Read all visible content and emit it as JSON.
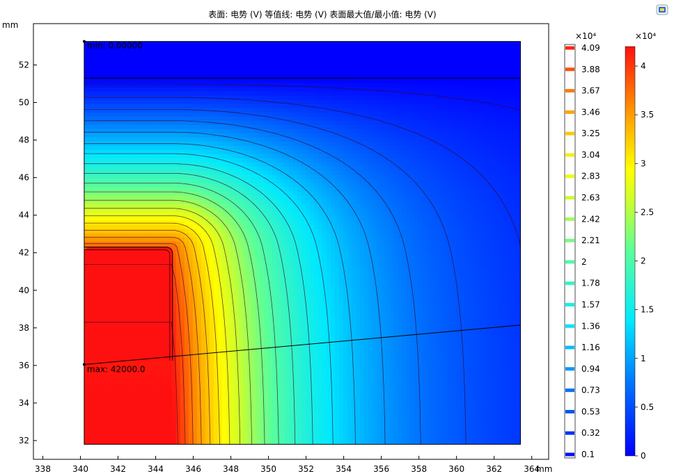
{
  "chart_data": {
    "type": "heatmap",
    "title": "表面: 电势 (V)  等值线: 电势 (V)  表面最大值/最小值: 电势 (V)",
    "xlabel": "mm",
    "ylabel": "mm",
    "xlim": [
      337.5,
      364.9
    ],
    "ylim": [
      31.0,
      54.2
    ],
    "xticks": [
      338,
      340,
      342,
      344,
      346,
      348,
      350,
      352,
      354,
      356,
      358,
      360,
      362,
      364
    ],
    "yticks": [
      32,
      34,
      36,
      38,
      40,
      42,
      44,
      46,
      48,
      50,
      52
    ],
    "domain": {
      "xmin": 340.2,
      "xmax": 363.4,
      "ymin": 31.8,
      "ymax": 53.25
    },
    "electrode": {
      "xmin": 340.2,
      "xmax": 344.9,
      "ymin": 36.25,
      "ymax": 42.3,
      "corner_radius": 0.5
    },
    "top_band_y": 51.3,
    "sloped_line": {
      "x1": 340.2,
      "y1": 36.05,
      "x2": 363.4,
      "y2": 38.15
    },
    "min_annotation": {
      "label": "min: 0.00000",
      "x": 340.2,
      "y": 53.25
    },
    "max_annotation": {
      "label": "max: 42000.0",
      "x": 340.2,
      "y": 36.05
    },
    "contour_levels": {
      "label": "×10⁴",
      "values": [
        "4.09",
        "3.88",
        "3.67",
        "3.46",
        "3.25",
        "3.04",
        "2.83",
        "2.63",
        "2.42",
        "2.21",
        "2",
        "1.78",
        "1.57",
        "1.36",
        "1.16",
        "0.94",
        "0.73",
        "0.53",
        "0.32",
        "0.1"
      ]
    },
    "colorbar": {
      "label": "×10⁴",
      "min": 0,
      "max": 4.2,
      "ticks": [
        "4",
        "3.5",
        "3",
        "2.5",
        "2",
        "1.5",
        "1",
        "0.5",
        "0"
      ],
      "tick_values": [
        4,
        3.5,
        3,
        2.5,
        2,
        1.5,
        1,
        0.5,
        0
      ]
    },
    "colormap": "rainbow (blue → cyan → green → yellow → red)",
    "grid": false,
    "legend": "right"
  }
}
